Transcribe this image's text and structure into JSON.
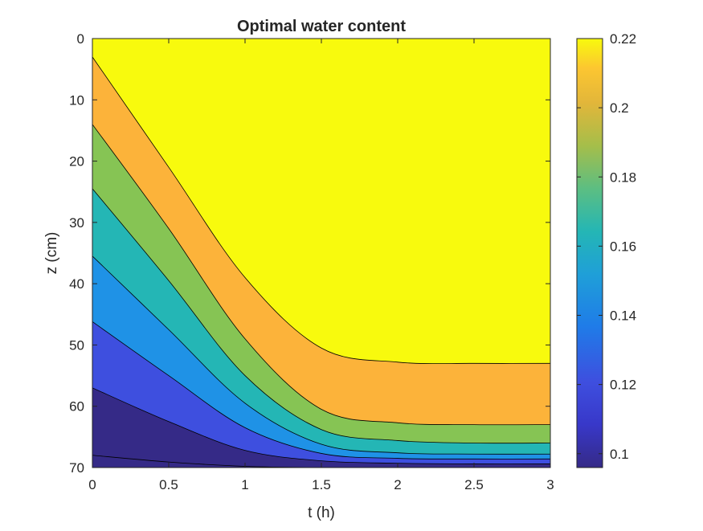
{
  "chart_data": {
    "type": "filled-contour",
    "title": "Optimal water content",
    "xlabel": "t (h)",
    "ylabel": "z (cm)",
    "xlim": [
      0,
      3
    ],
    "ylim": [
      0,
      70
    ],
    "y_reversed": true,
    "xticks": [
      0,
      0.5,
      1,
      1.5,
      2,
      2.5,
      3
    ],
    "xtick_labels": [
      "0",
      "0.5",
      "1",
      "1.5",
      "2",
      "2.5",
      "3"
    ],
    "yticks": [
      0,
      10,
      20,
      30,
      40,
      50,
      60,
      70
    ],
    "ytick_labels": [
      "0",
      "10",
      "20",
      "30",
      "40",
      "50",
      "60",
      "70"
    ],
    "colorbar": {
      "clim": [
        0.096,
        0.22
      ],
      "ticks": [
        0.1,
        0.12,
        0.14,
        0.16,
        0.18,
        0.2,
        0.22
      ],
      "tick_labels": [
        "0.1",
        "0.12",
        "0.14",
        "0.16",
        "0.18",
        "0.2",
        "0.22"
      ],
      "colormap": "parula"
    },
    "grid": false,
    "legend": "none",
    "contour_levels": [
      {
        "level": 0.22,
        "t": [
          0,
          0.5,
          1,
          1.5,
          2,
          2.5,
          3
        ],
        "z": [
          3,
          21,
          39,
          50.5,
          52.8,
          53,
          53
        ]
      },
      {
        "level": 0.2,
        "t": [
          0,
          0.5,
          1,
          1.5,
          2,
          2.5,
          3
        ],
        "z": [
          14,
          31,
          49,
          60.5,
          62.7,
          63,
          63
        ]
      },
      {
        "level": 0.18,
        "t": [
          0,
          0.5,
          1,
          1.5,
          2,
          2.5,
          3
        ],
        "z": [
          24.5,
          39.5,
          55,
          63.8,
          65.6,
          66,
          66
        ]
      },
      {
        "level": 0.16,
        "t": [
          0,
          0.5,
          1,
          1.5,
          2,
          2.5,
          3
        ],
        "z": [
          35.5,
          47.5,
          59.5,
          66.2,
          67.6,
          67.8,
          67.8
        ]
      },
      {
        "level": 0.14,
        "t": [
          0,
          0.5,
          1,
          1.5,
          2,
          2.5,
          3
        ],
        "z": [
          46.2,
          55,
          63.5,
          67.7,
          68.5,
          68.6,
          68.6
        ]
      },
      {
        "level": 0.12,
        "t": [
          0,
          0.5,
          1,
          1.5,
          2,
          2.5,
          3
        ],
        "z": [
          57,
          62.5,
          67.2,
          68.9,
          69.3,
          69.4,
          69.4
        ]
      },
      {
        "level": 0.1,
        "t": [
          0,
          0.5,
          1,
          1.5,
          2,
          2.5,
          3
        ],
        "z": [
          68,
          69.1,
          69.8,
          70,
          70,
          70,
          70
        ]
      }
    ],
    "fill_colors": {
      "0.1": "#352a87",
      "0.12": "#3e4fdf",
      "0.14": "#1f92e6",
      "0.16": "#24b6b5",
      "0.18": "#86c454",
      "0.2": "#fcb33a",
      "0.22": "#f8fa0d"
    }
  }
}
